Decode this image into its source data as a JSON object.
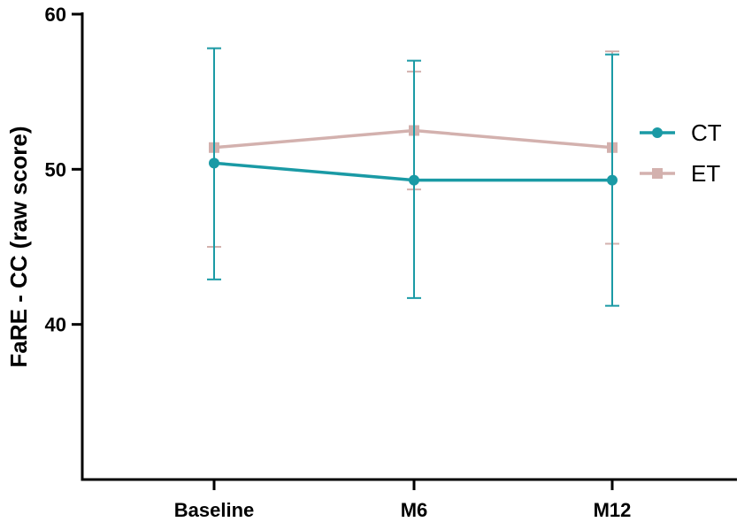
{
  "chart_data": {
    "type": "line",
    "categories": [
      "Baseline",
      "M6",
      "M12"
    ],
    "ylabel": "FaRE - CC (raw score)",
    "xlabel": "",
    "ylim": [
      30,
      60
    ],
    "yticks": [
      40,
      50,
      60
    ],
    "grid": false,
    "legend_position": "right",
    "series": [
      {
        "name": "CT",
        "color": "#1a9aa5",
        "marker": "circle",
        "values": [
          50.4,
          49.3,
          49.3
        ],
        "error_low": [
          42.9,
          41.7,
          41.2
        ],
        "error_high": [
          57.8,
          57.0,
          57.4
        ]
      },
      {
        "name": "ET",
        "color": "#d3b1ae",
        "marker": "square",
        "values": [
          51.4,
          52.5,
          51.4
        ],
        "error_low": [
          45.0,
          48.7,
          45.2
        ],
        "error_high": [
          57.8,
          56.3,
          57.6
        ]
      }
    ]
  }
}
